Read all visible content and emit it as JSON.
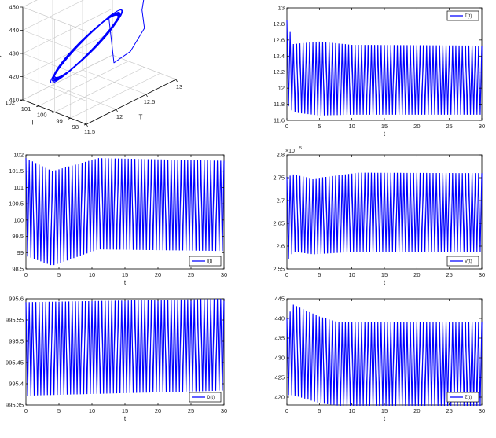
{
  "colors": {
    "line": "#0000ff",
    "axis": "#000000",
    "grid": "#c8c8c8",
    "background": "#ffffff"
  },
  "chart_data": [
    {
      "id": "phase3d",
      "type": "line",
      "dimensions": "3d",
      "xlabel": "T",
      "ylabel": "I",
      "zlabel": "Z",
      "xlim": [
        11.5,
        13
      ],
      "ylim": [
        98,
        102
      ],
      "zlim": [
        410,
        450
      ],
      "xticks": [
        "11.5",
        "12",
        "12.5",
        "13"
      ],
      "yticks": [
        "98",
        "99",
        "100",
        "101",
        "102"
      ],
      "zticks": [
        "410",
        "420",
        "430",
        "440",
        "450"
      ],
      "grid": true,
      "trajectory": {
        "T_range": [
          11.65,
          12.55
        ],
        "I_range": [
          98.6,
          101.9
        ],
        "Z_range": [
          417,
          443
        ],
        "initial_point": {
          "T": 12.9,
          "I": 99.6,
          "Z": 444
        }
      }
    },
    {
      "id": "T",
      "type": "line",
      "legend": "T(t)",
      "legend_position": "top-right",
      "xlabel": "t",
      "xlim": [
        0,
        30
      ],
      "ylim": [
        11.6,
        13
      ],
      "xticks": [
        "0",
        "5",
        "10",
        "15",
        "20",
        "25",
        "30"
      ],
      "yticks": [
        "11.6",
        "11.8",
        "12",
        "12.2",
        "12.4",
        "12.6",
        "12.8",
        "13"
      ],
      "series": [
        {
          "period": 0.5,
          "envelope": [
            {
              "t": 0,
              "min": 11.8,
              "max": 12.85
            },
            {
              "t": 1,
              "min": 11.7,
              "max": 12.55
            },
            {
              "t": 5,
              "min": 11.66,
              "max": 12.58
            },
            {
              "t": 10,
              "min": 11.67,
              "max": 12.54
            },
            {
              "t": 30,
              "min": 11.67,
              "max": 12.53
            }
          ]
        }
      ]
    },
    {
      "id": "I",
      "type": "line",
      "legend": "I(t)",
      "legend_position": "bottom-right",
      "xlabel": "t",
      "xlim": [
        0,
        30
      ],
      "ylim": [
        98.5,
        102
      ],
      "xticks": [
        "0",
        "5",
        "10",
        "15",
        "20",
        "25",
        "30"
      ],
      "yticks": [
        "98.5",
        "99",
        "99.5",
        "100",
        "100.5",
        "101",
        "101.5",
        "102"
      ],
      "series": [
        {
          "period": 0.5,
          "envelope": [
            {
              "t": 0,
              "min": 98.9,
              "max": 101.9
            },
            {
              "t": 4,
              "min": 98.6,
              "max": 101.5
            },
            {
              "t": 11,
              "min": 99.1,
              "max": 101.9
            },
            {
              "t": 30,
              "min": 99.05,
              "max": 101.82
            }
          ]
        }
      ]
    },
    {
      "id": "V",
      "type": "line",
      "legend": "V(t)",
      "legend_position": "bottom-right",
      "xlabel": "t",
      "xlim": [
        0,
        30
      ],
      "ylim": [
        2.55,
        2.8
      ],
      "exponent_label": "×10",
      "exponent": "5",
      "xticks": [
        "0",
        "5",
        "10",
        "15",
        "20",
        "25",
        "30"
      ],
      "yticks": [
        "2.55",
        "2.6",
        "2.65",
        "2.7",
        "2.75",
        "2.8"
      ],
      "series": [
        {
          "period": 0.5,
          "envelope": [
            {
              "t": 0,
              "min": 2.565,
              "max": 2.752
            },
            {
              "t": 1,
              "min": 2.588,
              "max": 2.757
            },
            {
              "t": 4,
              "min": 2.582,
              "max": 2.748
            },
            {
              "t": 11,
              "min": 2.588,
              "max": 2.761
            },
            {
              "t": 30,
              "min": 2.588,
              "max": 2.76
            }
          ]
        }
      ]
    },
    {
      "id": "D",
      "type": "line",
      "legend": "D(t)",
      "legend_position": "bottom-right",
      "xlabel": "t",
      "xlim": [
        0,
        30
      ],
      "ylim": [
        995.35,
        995.6
      ],
      "xticks": [
        "0",
        "5",
        "10",
        "15",
        "20",
        "25",
        "30"
      ],
      "yticks": [
        "995.35",
        "995.4",
        "995.45",
        "995.5",
        "995.55",
        "995.6"
      ],
      "series": [
        {
          "period": 0.5,
          "envelope": [
            {
              "t": 0,
              "min": 995.372,
              "max": 995.592
            },
            {
              "t": 30,
              "min": 995.384,
              "max": 995.6
            }
          ]
        }
      ]
    },
    {
      "id": "Z",
      "type": "line",
      "legend": "Z(t)",
      "legend_position": "bottom-right",
      "xlabel": "t",
      "xlim": [
        0,
        30
      ],
      "ylim": [
        418,
        445
      ],
      "xticks": [
        "0",
        "5",
        "10",
        "15",
        "20",
        "25",
        "30"
      ],
      "yticks": [
        "420",
        "425",
        "430",
        "435",
        "440",
        "445"
      ],
      "series": [
        {
          "period": 0.5,
          "envelope": [
            {
              "t": 0,
              "min": 420.5,
              "max": 440.0
            },
            {
              "t": 1,
              "min": 420.5,
              "max": 443.5
            },
            {
              "t": 5,
              "min": 418.5,
              "max": 440.5
            },
            {
              "t": 8,
              "min": 417.8,
              "max": 439.0
            },
            {
              "t": 30,
              "min": 417.8,
              "max": 439.0
            }
          ]
        }
      ]
    }
  ]
}
